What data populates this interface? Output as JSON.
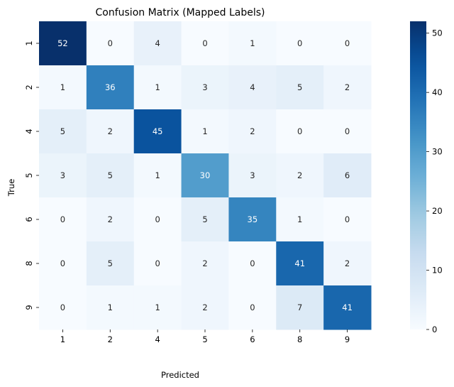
{
  "chart_data": {
    "type": "heatmap",
    "title": "Confusion Matrix (Mapped Labels)",
    "xlabel": "Predicted",
    "ylabel": "True",
    "x_categories": [
      "1",
      "2",
      "4",
      "5",
      "6",
      "8",
      "9"
    ],
    "y_categories": [
      "1",
      "2",
      "4",
      "5",
      "6",
      "8",
      "9"
    ],
    "values": [
      [
        52,
        0,
        4,
        0,
        1,
        0,
        0
      ],
      [
        1,
        36,
        1,
        3,
        4,
        5,
        2
      ],
      [
        5,
        2,
        45,
        1,
        2,
        0,
        0
      ],
      [
        3,
        5,
        1,
        30,
        3,
        2,
        6
      ],
      [
        0,
        2,
        0,
        5,
        35,
        1,
        0
      ],
      [
        0,
        5,
        0,
        2,
        0,
        41,
        2
      ],
      [
        0,
        1,
        1,
        2,
        0,
        7,
        41
      ]
    ],
    "colormap": "Blues",
    "colorbar": {
      "range": [
        0,
        52
      ],
      "ticks": [
        0,
        10,
        20,
        30,
        40,
        50
      ]
    },
    "grid": false
  }
}
